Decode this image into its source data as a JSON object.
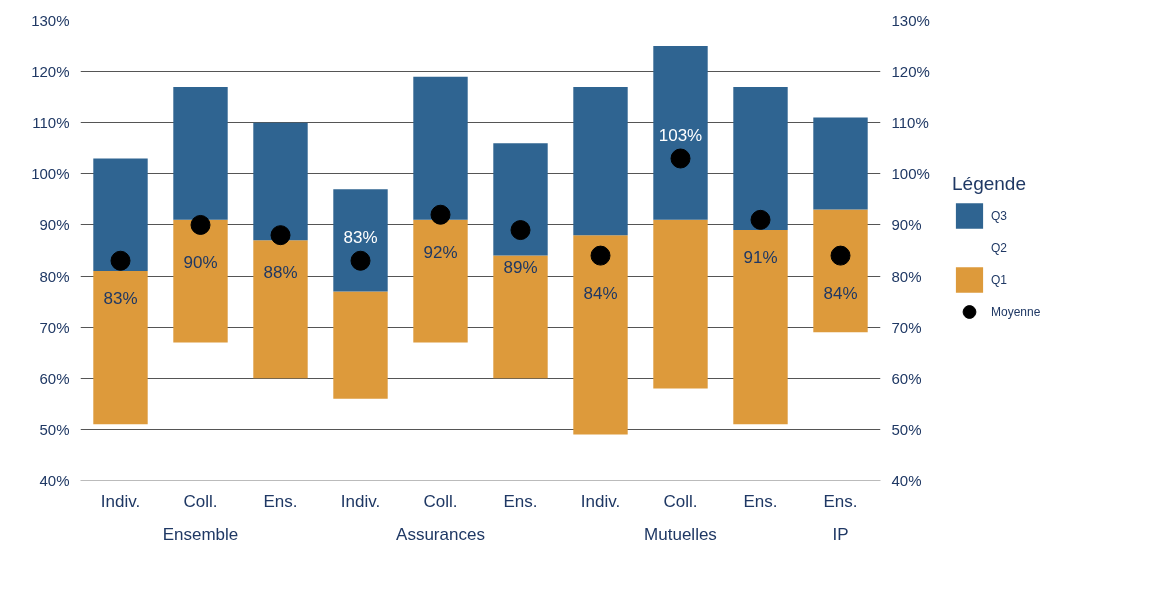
{
  "chart_data": {
    "type": "bar",
    "categories": [
      "Indiv.",
      "Coll.",
      "Ens.",
      "Indiv.",
      "Coll.",
      "Ens.",
      "Indiv.",
      "Coll.",
      "Ens.",
      "Ens."
    ],
    "series": [
      {
        "name": "Q1",
        "color": "#dd9a3b",
        "base": [
          51,
          67,
          60,
          56,
          67,
          60,
          49,
          58,
          51,
          69
        ],
        "values": [
          30,
          24,
          27,
          21,
          24,
          24,
          39,
          33,
          38,
          24
        ]
      },
      {
        "name": "Q3",
        "color": "#2f6491",
        "base": [
          81,
          91,
          87,
          77,
          91,
          84,
          88,
          91,
          89,
          93
        ],
        "values": [
          22,
          26,
          23,
          20,
          28,
          22,
          29,
          34,
          28,
          18
        ]
      },
      {
        "name": "Moyenne",
        "type": "scatter",
        "color": "#000000",
        "marker": "circle",
        "values": [
          83,
          90,
          88,
          83,
          92,
          89,
          84,
          103,
          91,
          84
        ],
        "value_labels": [
          "83%",
          "90%",
          "88%",
          "83%",
          "92%",
          "89%",
          "84%",
          "103%",
          "91%",
          "84%"
        ]
      }
    ],
    "ylim": [
      40,
      130
    ],
    "yticks": [
      {
        "value": 40,
        "label": "40%"
      },
      {
        "value": 50,
        "label": "50%"
      },
      {
        "value": 60,
        "label": "60%"
      },
      {
        "value": 70,
        "label": "70%"
      },
      {
        "value": 80,
        "label": "80%"
      },
      {
        "value": 90,
        "label": "90%"
      },
      {
        "value": 100,
        "label": "100%"
      },
      {
        "value": 110,
        "label": "110%"
      },
      {
        "value": 120,
        "label": "120%"
      },
      {
        "value": 130,
        "label": "130%"
      }
    ],
    "y2lim": [
      40,
      130
    ],
    "y2ticks": [
      {
        "value": 40,
        "label": "40%"
      },
      {
        "value": 50,
        "label": "50%"
      },
      {
        "value": 60,
        "label": "60%"
      },
      {
        "value": 70,
        "label": "70%"
      },
      {
        "value": 80,
        "label": "80%"
      },
      {
        "value": 90,
        "label": "90%"
      },
      {
        "value": 100,
        "label": "100%"
      },
      {
        "value": 110,
        "label": "110%"
      },
      {
        "value": 120,
        "label": "120%"
      },
      {
        "value": 130,
        "label": "130%"
      }
    ],
    "grid": "y",
    "legend": "right",
    "legend_title": "Légende",
    "annotations": [
      "Q2",
      "Ensemble",
      "Assurances",
      "Mutuelles",
      "IP"
    ]
  }
}
